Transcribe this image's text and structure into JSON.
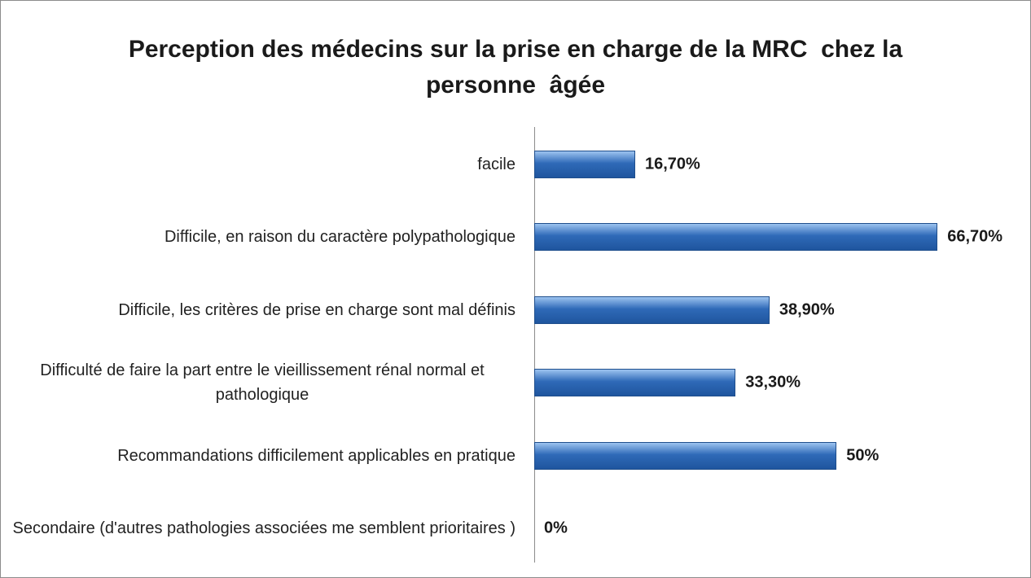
{
  "chart_data": {
    "type": "bar",
    "orientation": "horizontal",
    "title": "Perception des médecins sur la prise en charge de la MRC  chez la personne  âgée",
    "categories": [
      "facile",
      "Difficile, en raison du caractère polypathologique ",
      "Difficile, les critères de prise en charge sont mal définis",
      "Difficulté de faire la part entre le vieillissement rénal normal et pathologique",
      "Recommandations difficilement applicables en pratique",
      "Secondaire (d'autres pathologies associées me semblent prioritaires )"
    ],
    "values": [
      16.7,
      66.7,
      38.9,
      33.3,
      50,
      0
    ],
    "value_labels": [
      "16,70%",
      "66,70%",
      "38,90%",
      "33,30%",
      "50%",
      "0%"
    ],
    "color": "#2f6ab8",
    "xlim": [
      0,
      80
    ]
  }
}
